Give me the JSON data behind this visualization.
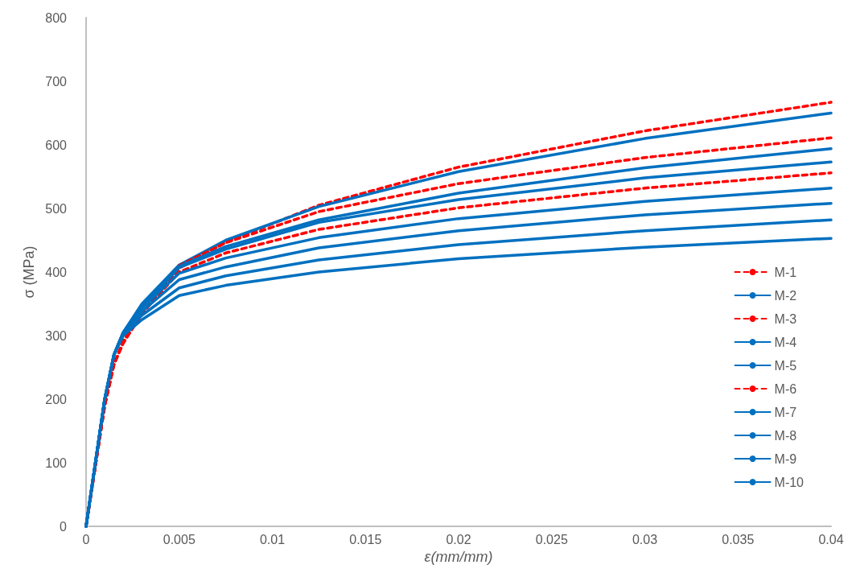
{
  "chart_data": {
    "type": "line",
    "xlabel": "ε(mm/mm)",
    "ylabel": "σ (MPa)",
    "x": [
      0,
      0.001,
      0.0015,
      0.002,
      0.003,
      0.005,
      0.0075,
      0.0125,
      0.02,
      0.03,
      0.04
    ],
    "series": [
      {
        "name": "M-1",
        "color": "#ff0000",
        "line_style": "dashed",
        "values": [
          0,
          190,
          255,
          288,
          335,
          406,
          447,
          505,
          565,
          622,
          667
        ]
      },
      {
        "name": "M-2",
        "color": "#0070c0",
        "values": [
          0,
          200,
          270,
          305,
          350,
          411,
          450,
          503,
          558,
          610,
          650
        ]
      },
      {
        "name": "M-3",
        "color": "#ff0000",
        "line_style": "dashed",
        "values": [
          0,
          190,
          255,
          290,
          333,
          410,
          446,
          495,
          539,
          580,
          611
        ]
      },
      {
        "name": "M-4",
        "color": "#0070c0",
        "values": [
          0,
          200,
          270,
          305,
          348,
          409,
          440,
          482,
          524,
          564,
          594
        ]
      },
      {
        "name": "M-5",
        "color": "#0070c0",
        "values": [
          0,
          200,
          270,
          305,
          345,
          407,
          436,
          478,
          514,
          548,
          573
        ]
      },
      {
        "name": "M-6",
        "color": "#ff0000",
        "line_style": "dashed",
        "values": [
          0,
          190,
          255,
          292,
          335,
          400,
          430,
          467,
          501,
          532,
          556
        ]
      },
      {
        "name": "M-7",
        "color": "#0070c0",
        "values": [
          0,
          200,
          270,
          305,
          343,
          398,
          422,
          454,
          484,
          511,
          532
        ]
      },
      {
        "name": "M-8",
        "color": "#0070c0",
        "values": [
          0,
          200,
          270,
          305,
          338,
          388,
          408,
          438,
          465,
          490,
          508
        ]
      },
      {
        "name": "M-9",
        "color": "#0070c0",
        "values": [
          0,
          200,
          270,
          303,
          332,
          375,
          394,
          419,
          443,
          465,
          482
        ]
      },
      {
        "name": "M-10",
        "color": "#0070c0",
        "values": [
          0,
          200,
          270,
          300,
          325,
          363,
          379,
          400,
          421,
          439,
          453
        ]
      }
    ],
    "xlim": [
      0,
      0.04
    ],
    "xticks": [
      0,
      0.005,
      0.01,
      0.015,
      0.02,
      0.025,
      0.03,
      0.035,
      0.04
    ],
    "ylim": [
      0,
      800
    ],
    "yticks": [
      0,
      100,
      200,
      300,
      400,
      500,
      600,
      700,
      800
    ],
    "grid": false,
    "legend": "right",
    "marker": "none",
    "line_style": "solid"
  }
}
